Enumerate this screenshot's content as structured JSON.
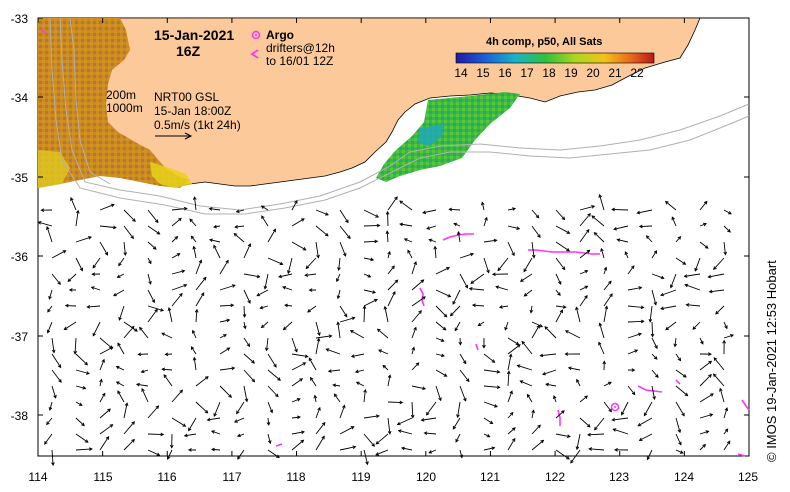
{
  "map": {
    "date_title": "15-Jan-2021",
    "hour_title": "16Z",
    "argo_label": "Argo",
    "drifters_label": "drifters@12h",
    "drifters_until": "to 16/01 12Z",
    "depth_200": "200m",
    "depth_1000": "1000m",
    "nrt_label": "NRT00 GSL",
    "nrt_date": "15-Jan 18:00Z",
    "scale_label": "0.5m/s (1kt 24h)",
    "colorbar_title": "4h comp, p50, All Sats",
    "colorbar_ticks": [
      "14",
      "15",
      "16",
      "17",
      "18",
      "19",
      "20",
      "21",
      "22"
    ],
    "credit": "©  IMOS 19-Jan-2021 12:53 Hobart",
    "x_ticks": [
      "114",
      "115",
      "116",
      "117",
      "118",
      "119",
      "120",
      "121",
      "122",
      "123",
      "124",
      "125"
    ],
    "y_ticks": [
      "-33",
      "-34",
      "-35",
      "-36",
      "-37",
      "-38"
    ],
    "x_range": [
      114,
      125
    ],
    "y_range": [
      -38.55,
      -33
    ],
    "colors": {
      "land": "#fcc99b",
      "argo": "#ff33ff",
      "drifter": "#ff33ff",
      "isobath": "#b0b0b0",
      "vector": "#000000"
    },
    "icons": {
      "argo_marker": "circle-dot",
      "drifter_marker": "chevron-left"
    }
  }
}
